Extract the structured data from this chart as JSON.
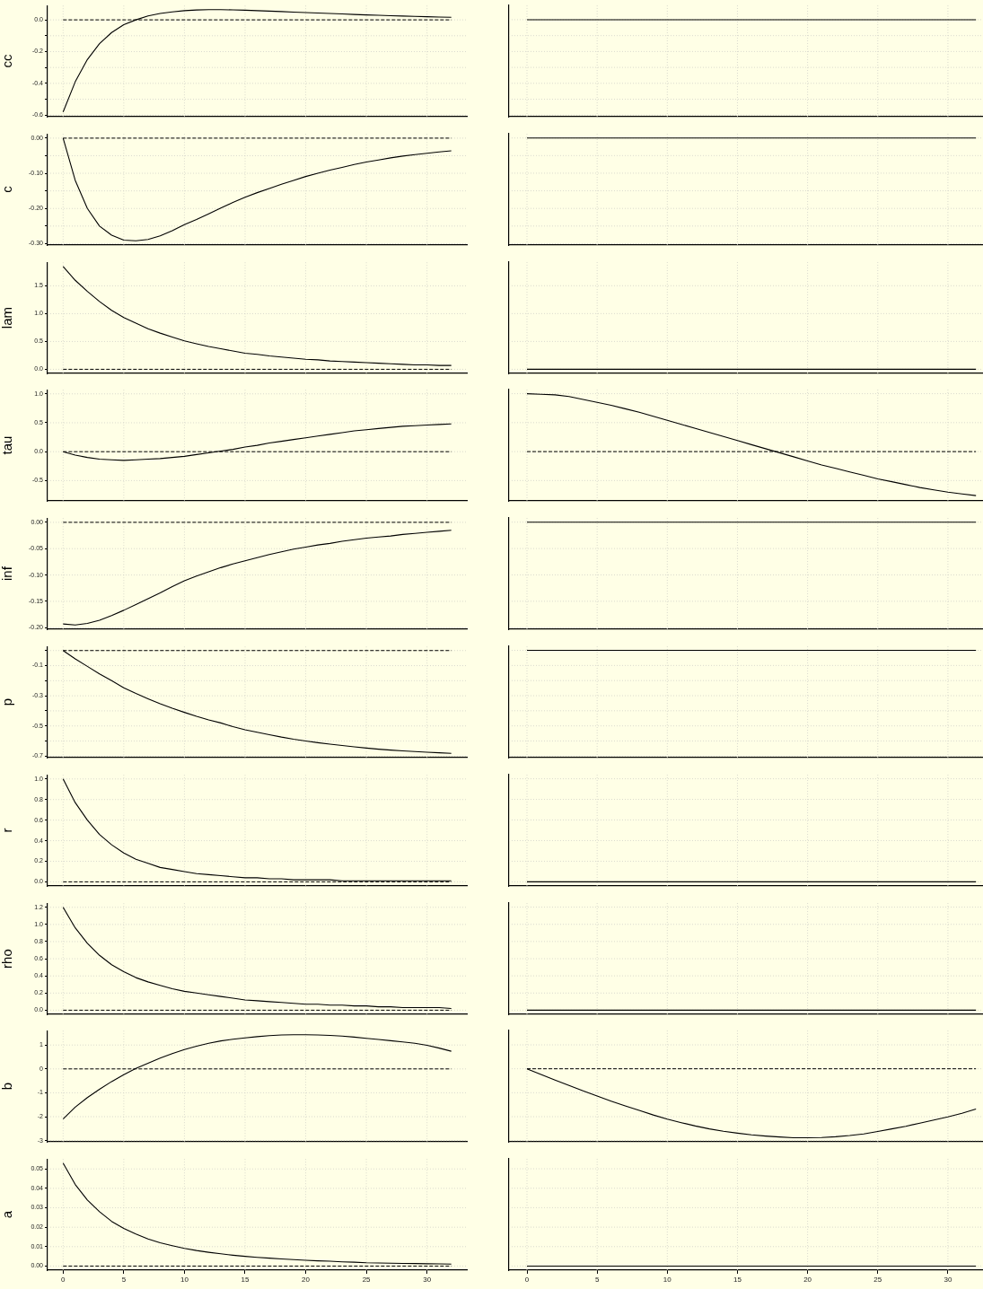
{
  "chart_data": [
    {
      "type": "line",
      "ylabel": "cc",
      "x": [
        0,
        1,
        2,
        3,
        4,
        5,
        6,
        7,
        8,
        9,
        10,
        11,
        12,
        13,
        14,
        15,
        16,
        17,
        18,
        19,
        20,
        21,
        22,
        23,
        24,
        25,
        26,
        27,
        28,
        29,
        30,
        31,
        32
      ],
      "series": [
        {
          "color": "#000000",
          "values": [
            -0.58,
            -0.39,
            -0.25,
            -0.15,
            -0.08,
            -0.03,
            0.0,
            0.025,
            0.04,
            0.05,
            0.058,
            0.062,
            0.064,
            0.064,
            0.063,
            0.061,
            0.058,
            0.055,
            0.052,
            0.049,
            0.046,
            0.043,
            0.04,
            0.037,
            0.034,
            0.031,
            0.029,
            0.026,
            0.024,
            0.022,
            0.02,
            0.018,
            0.016
          ]
        }
      ],
      "xlim": [
        -1.28,
        33.28
      ],
      "ylim": [
        -0.61,
        0.09
      ],
      "xticks": [
        0,
        5,
        10,
        15,
        20,
        25,
        30
      ],
      "yticks": [
        {
          "value": 0,
          "label": "0.0"
        },
        {
          "value": -0.1,
          "label": null
        },
        {
          "value": -0.2,
          "label": "-0.2"
        },
        {
          "value": -0.3,
          "label": null
        },
        {
          "value": -0.4,
          "label": "-0.4"
        },
        {
          "value": -0.5,
          "label": null
        },
        {
          "value": -0.6,
          "label": "-0.6"
        }
      ],
      "grid": true,
      "tick_labels": "y",
      "ref_lines": [
        {
          "axis": "y",
          "value": 0,
          "line_style": "dashed",
          "color": "#000000"
        }
      ]
    },
    {
      "type": "line",
      "x": [
        0,
        1,
        2,
        3,
        4,
        5,
        6,
        7,
        8,
        9,
        10,
        11,
        12,
        13,
        14,
        15,
        16,
        17,
        18,
        19,
        20,
        21,
        22,
        23,
        24,
        25,
        26,
        27,
        28,
        29,
        30,
        31,
        32
      ],
      "series": [
        {
          "color": "#000000",
          "values": [
            0,
            0,
            0,
            0,
            0,
            0,
            0,
            0,
            0,
            0,
            0,
            0,
            0,
            0,
            0,
            0,
            0,
            0,
            0,
            0,
            0,
            0,
            0,
            0,
            0,
            0,
            0,
            0,
            0,
            0,
            0,
            0,
            0
          ]
        }
      ],
      "xlim": [
        -1.28,
        32.5
      ],
      "ylim": [
        -0.61,
        0.09
      ],
      "xticks": [
        0,
        5,
        10,
        15,
        20,
        25,
        30
      ],
      "yticks": [
        0,
        -0.1,
        -0.2,
        -0.3,
        -0.4,
        -0.5,
        -0.6
      ],
      "grid": true,
      "tick_labels": false
    },
    {
      "type": "line",
      "ylabel": "c",
      "x": [
        0,
        1,
        2,
        3,
        4,
        5,
        6,
        7,
        8,
        9,
        10,
        11,
        12,
        13,
        14,
        15,
        16,
        17,
        18,
        19,
        20,
        21,
        22,
        23,
        24,
        25,
        26,
        27,
        28,
        29,
        30,
        31,
        32
      ],
      "series": [
        {
          "color": "#000000",
          "values": [
            0,
            -0.12,
            -0.2,
            -0.25,
            -0.276,
            -0.29,
            -0.292,
            -0.288,
            -0.278,
            -0.263,
            -0.246,
            -0.231,
            -0.215,
            -0.199,
            -0.183,
            -0.168,
            -0.155,
            -0.143,
            -0.131,
            -0.12,
            -0.109,
            -0.1,
            -0.091,
            -0.083,
            -0.075,
            -0.068,
            -0.062,
            -0.056,
            -0.051,
            -0.047,
            -0.043,
            -0.039,
            -0.036
          ]
        }
      ],
      "xlim": [
        -1.28,
        33.28
      ],
      "ylim": [
        -0.304,
        0.012
      ],
      "xticks": [
        0,
        5,
        10,
        15,
        20,
        25,
        30
      ],
      "yticks": [
        {
          "value": 0,
          "label": "0.00"
        },
        {
          "value": -0.05,
          "label": null
        },
        {
          "value": -0.1,
          "label": "-0.10"
        },
        {
          "value": -0.15,
          "label": null
        },
        {
          "value": -0.2,
          "label": "-0.20"
        },
        {
          "value": -0.25,
          "label": null
        },
        {
          "value": -0.3,
          "label": "-0.30"
        }
      ],
      "grid": true,
      "tick_labels": "y",
      "ref_lines": [
        {
          "axis": "y",
          "value": 0,
          "line_style": "dashed",
          "color": "#000000"
        }
      ]
    },
    {
      "type": "line",
      "x": [
        0,
        1,
        2,
        3,
        4,
        5,
        6,
        7,
        8,
        9,
        10,
        11,
        12,
        13,
        14,
        15,
        16,
        17,
        18,
        19,
        20,
        21,
        22,
        23,
        24,
        25,
        26,
        27,
        28,
        29,
        30,
        31,
        32
      ],
      "series": [
        {
          "color": "#000000",
          "values": [
            0,
            0,
            0,
            0,
            0,
            0,
            0,
            0,
            0,
            0,
            0,
            0,
            0,
            0,
            0,
            0,
            0,
            0,
            0,
            0,
            0,
            0,
            0,
            0,
            0,
            0,
            0,
            0,
            0,
            0,
            0,
            0,
            0
          ]
        }
      ],
      "xlim": [
        -1.28,
        32.5
      ],
      "ylim": [
        -0.304,
        0.012
      ],
      "xticks": [
        0,
        5,
        10,
        15,
        20,
        25,
        30
      ],
      "yticks": [
        0,
        -0.05,
        -0.1,
        -0.15,
        -0.2,
        -0.25,
        -0.3
      ],
      "grid": true,
      "tick_labels": false
    },
    {
      "type": "line",
      "ylabel": "lam",
      "x": [
        0,
        1,
        2,
        3,
        4,
        5,
        6,
        7,
        8,
        9,
        10,
        11,
        12,
        13,
        14,
        15,
        16,
        17,
        18,
        19,
        20,
        21,
        22,
        23,
        24,
        25,
        26,
        27,
        28,
        29,
        30,
        31,
        32
      ],
      "series": [
        {
          "color": "#000000",
          "values": [
            1.85,
            1.6,
            1.4,
            1.22,
            1.06,
            0.93,
            0.83,
            0.73,
            0.65,
            0.58,
            0.51,
            0.46,
            0.41,
            0.37,
            0.33,
            0.29,
            0.27,
            0.24,
            0.22,
            0.2,
            0.18,
            0.17,
            0.15,
            0.14,
            0.13,
            0.12,
            0.11,
            0.1,
            0.09,
            0.08,
            0.08,
            0.07,
            0.07
          ]
        }
      ],
      "xlim": [
        -1.28,
        33.28
      ],
      "ylim": [
        -0.074,
        1.924
      ],
      "xticks": [
        0,
        5,
        10,
        15,
        20,
        25,
        30
      ],
      "yticks": [
        {
          "value": 0,
          "label": "0.0"
        },
        {
          "value": 0.5,
          "label": "0.5"
        },
        {
          "value": 1,
          "label": "1.0"
        },
        {
          "value": 1.5,
          "label": "1.5"
        }
      ],
      "grid": true,
      "tick_labels": "y",
      "ref_lines": [
        {
          "axis": "y",
          "value": 0,
          "line_style": "dashed",
          "color": "#000000"
        }
      ]
    },
    {
      "type": "line",
      "x": [
        0,
        1,
        2,
        3,
        4,
        5,
        6,
        7,
        8,
        9,
        10,
        11,
        12,
        13,
        14,
        15,
        16,
        17,
        18,
        19,
        20,
        21,
        22,
        23,
        24,
        25,
        26,
        27,
        28,
        29,
        30,
        31,
        32
      ],
      "series": [
        {
          "color": "#000000",
          "values": [
            0,
            0,
            0,
            0,
            0,
            0,
            0,
            0,
            0,
            0,
            0,
            0,
            0,
            0,
            0,
            0,
            0,
            0,
            0,
            0,
            0,
            0,
            0,
            0,
            0,
            0,
            0,
            0,
            0,
            0,
            0,
            0,
            0
          ]
        }
      ],
      "xlim": [
        -1.28,
        32.5
      ],
      "ylim": [
        -0.074,
        1.924
      ],
      "xticks": [
        0,
        5,
        10,
        15,
        20,
        25,
        30
      ],
      "yticks": [
        0,
        0.5,
        1,
        1.5
      ],
      "grid": true,
      "tick_labels": false
    },
    {
      "type": "line",
      "ylabel": "tau",
      "x": [
        0,
        1,
        2,
        3,
        4,
        5,
        6,
        7,
        8,
        9,
        10,
        11,
        12,
        13,
        14,
        15,
        16,
        17,
        18,
        19,
        20,
        21,
        22,
        23,
        24,
        25,
        26,
        27,
        28,
        29,
        30,
        31,
        32
      ],
      "series": [
        {
          "color": "#000000",
          "values": [
            0,
            -0.06,
            -0.1,
            -0.13,
            -0.14,
            -0.15,
            -0.14,
            -0.13,
            -0.12,
            -0.1,
            -0.08,
            -0.05,
            -0.02,
            0.01,
            0.04,
            0.08,
            0.11,
            0.15,
            0.18,
            0.21,
            0.24,
            0.27,
            0.3,
            0.33,
            0.36,
            0.38,
            0.4,
            0.42,
            0.44,
            0.45,
            0.46,
            0.47,
            0.48
          ]
        }
      ],
      "xlim": [
        -1.28,
        33.28
      ],
      "ylim": [
        -0.851,
        1.071
      ],
      "xticks": [
        0,
        5,
        10,
        15,
        20,
        25,
        30
      ],
      "yticks": [
        {
          "value": -0.5,
          "label": "-0.5"
        },
        {
          "value": 0,
          "label": "0.0"
        },
        {
          "value": 0.5,
          "label": "0.5"
        },
        {
          "value": 1,
          "label": "1.0"
        }
      ],
      "grid": true,
      "tick_labels": "y",
      "ref_lines": [
        {
          "axis": "y",
          "value": 0,
          "line_style": "dashed",
          "color": "#000000"
        }
      ]
    },
    {
      "type": "line",
      "x": [
        0,
        1,
        2,
        3,
        4,
        5,
        6,
        7,
        8,
        9,
        10,
        11,
        12,
        13,
        14,
        15,
        16,
        17,
        18,
        19,
        20,
        21,
        22,
        23,
        24,
        25,
        26,
        27,
        28,
        29,
        30,
        31,
        32
      ],
      "series": [
        {
          "color": "#000000",
          "values": [
            1.0,
            0.99,
            0.98,
            0.95,
            0.9,
            0.85,
            0.8,
            0.74,
            0.68,
            0.61,
            0.54,
            0.47,
            0.4,
            0.33,
            0.26,
            0.19,
            0.12,
            0.05,
            -0.02,
            -0.09,
            -0.16,
            -0.23,
            -0.29,
            -0.35,
            -0.41,
            -0.47,
            -0.52,
            -0.57,
            -0.62,
            -0.66,
            -0.7,
            -0.73,
            -0.76
          ]
        }
      ],
      "xlim": [
        -1.28,
        32.5
      ],
      "ylim": [
        -0.851,
        1.071
      ],
      "xticks": [
        0,
        5,
        10,
        15,
        20,
        25,
        30
      ],
      "yticks": [
        -0.5,
        0,
        0.5,
        1
      ],
      "grid": true,
      "tick_labels": false,
      "ref_lines": [
        {
          "axis": "y",
          "value": 0,
          "line_style": "dashed",
          "color": "#000000"
        }
      ]
    },
    {
      "type": "line",
      "ylabel": "inf",
      "x": [
        0,
        1,
        2,
        3,
        4,
        5,
        6,
        7,
        8,
        9,
        10,
        11,
        12,
        13,
        14,
        15,
        16,
        17,
        18,
        19,
        20,
        21,
        22,
        23,
        24,
        25,
        26,
        27,
        28,
        29,
        30,
        31,
        32
      ],
      "series": [
        {
          "color": "#000000",
          "values": [
            -0.193,
            -0.195,
            -0.192,
            -0.186,
            -0.177,
            -0.167,
            -0.156,
            -0.145,
            -0.134,
            -0.122,
            -0.111,
            -0.102,
            -0.094,
            -0.086,
            -0.079,
            -0.073,
            -0.067,
            -0.061,
            -0.056,
            -0.051,
            -0.047,
            -0.043,
            -0.04,
            -0.036,
            -0.033,
            -0.03,
            -0.028,
            -0.026,
            -0.023,
            -0.021,
            -0.019,
            -0.017,
            -0.015
          ]
        }
      ],
      "xlim": [
        -1.28,
        33.28
      ],
      "ylim": [
        -0.203,
        0.008
      ],
      "xticks": [
        0,
        5,
        10,
        15,
        20,
        25,
        30
      ],
      "yticks": [
        {
          "value": 0,
          "label": "0.00"
        },
        {
          "value": -0.05,
          "label": "-0.05"
        },
        {
          "value": -0.1,
          "label": "-0.10"
        },
        {
          "value": -0.15,
          "label": "-0.15"
        },
        {
          "value": -0.2,
          "label": "-0.20"
        }
      ],
      "grid": true,
      "tick_labels": "y",
      "ref_lines": [
        {
          "axis": "y",
          "value": 0,
          "line_style": "dashed",
          "color": "#000000"
        }
      ]
    },
    {
      "type": "line",
      "x": [
        0,
        1,
        2,
        3,
        4,
        5,
        6,
        7,
        8,
        9,
        10,
        11,
        12,
        13,
        14,
        15,
        16,
        17,
        18,
        19,
        20,
        21,
        22,
        23,
        24,
        25,
        26,
        27,
        28,
        29,
        30,
        31,
        32
      ],
      "series": [
        {
          "color": "#000000",
          "values": [
            0,
            0,
            0,
            0,
            0,
            0,
            0,
            0,
            0,
            0,
            0,
            0,
            0,
            0,
            0,
            0,
            0,
            0,
            0,
            0,
            0,
            0,
            0,
            0,
            0,
            0,
            0,
            0,
            0,
            0,
            0,
            0,
            0
          ]
        }
      ],
      "xlim": [
        -1.28,
        32.5
      ],
      "ylim": [
        -0.203,
        0.008
      ],
      "xticks": [
        0,
        5,
        10,
        15,
        20,
        25,
        30
      ],
      "yticks": [
        0,
        -0.05,
        -0.1,
        -0.15,
        -0.2
      ],
      "grid": true,
      "tick_labels": false
    },
    {
      "type": "line",
      "ylabel": "p",
      "x": [
        0,
        1,
        2,
        3,
        4,
        5,
        6,
        7,
        8,
        9,
        10,
        11,
        12,
        13,
        14,
        15,
        16,
        17,
        18,
        19,
        20,
        21,
        22,
        23,
        24,
        25,
        26,
        27,
        28,
        29,
        30,
        31,
        32
      ],
      "series": [
        {
          "color": "#000000",
          "values": [
            0,
            -0.055,
            -0.105,
            -0.155,
            -0.2,
            -0.247,
            -0.285,
            -0.32,
            -0.353,
            -0.383,
            -0.41,
            -0.436,
            -0.46,
            -0.48,
            -0.505,
            -0.525,
            -0.542,
            -0.558,
            -0.574,
            -0.588,
            -0.6,
            -0.611,
            -0.621,
            -0.63,
            -0.639,
            -0.647,
            -0.654,
            -0.66,
            -0.665,
            -0.67,
            -0.674,
            -0.678,
            -0.682
          ]
        }
      ],
      "xlim": [
        -1.28,
        33.28
      ],
      "ylim": [
        -0.71,
        0.027
      ],
      "xticks": [
        0,
        5,
        10,
        15,
        20,
        25,
        30
      ],
      "yticks": [
        {
          "value": 0,
          "label": null
        },
        {
          "value": -0.1,
          "label": "-0.1"
        },
        {
          "value": -0.2,
          "label": null
        },
        {
          "value": -0.3,
          "label": "-0.3"
        },
        {
          "value": -0.4,
          "label": null
        },
        {
          "value": -0.5,
          "label": "-0.5"
        },
        {
          "value": -0.6,
          "label": null
        },
        {
          "value": -0.7,
          "label": "-0.7"
        }
      ],
      "grid": true,
      "tick_labels": "y",
      "ref_lines": [
        {
          "axis": "y",
          "value": 0,
          "line_style": "dashed",
          "color": "#000000"
        }
      ]
    },
    {
      "type": "line",
      "x": [
        0,
        1,
        2,
        3,
        4,
        5,
        6,
        7,
        8,
        9,
        10,
        11,
        12,
        13,
        14,
        15,
        16,
        17,
        18,
        19,
        20,
        21,
        22,
        23,
        24,
        25,
        26,
        27,
        28,
        29,
        30,
        31,
        32
      ],
      "series": [
        {
          "color": "#000000",
          "values": [
            0,
            0,
            0,
            0,
            0,
            0,
            0,
            0,
            0,
            0,
            0,
            0,
            0,
            0,
            0,
            0,
            0,
            0,
            0,
            0,
            0,
            0,
            0,
            0,
            0,
            0,
            0,
            0,
            0,
            0,
            0,
            0,
            0
          ]
        }
      ],
      "xlim": [
        -1.28,
        32.5
      ],
      "ylim": [
        -0.71,
        0.027
      ],
      "xticks": [
        0,
        5,
        10,
        15,
        20,
        25,
        30
      ],
      "yticks": [
        0,
        -0.1,
        -0.2,
        -0.3,
        -0.4,
        -0.5,
        -0.6,
        -0.7
      ],
      "grid": true,
      "tick_labels": false
    },
    {
      "type": "line",
      "ylabel": "r",
      "x": [
        0,
        1,
        2,
        3,
        4,
        5,
        6,
        7,
        8,
        9,
        10,
        11,
        12,
        13,
        14,
        15,
        16,
        17,
        18,
        19,
        20,
        21,
        22,
        23,
        24,
        25,
        26,
        27,
        28,
        29,
        30,
        31,
        32
      ],
      "series": [
        {
          "color": "#000000",
          "values": [
            1,
            0.77,
            0.6,
            0.46,
            0.36,
            0.28,
            0.22,
            0.18,
            0.14,
            0.12,
            0.1,
            0.08,
            0.07,
            0.06,
            0.05,
            0.04,
            0.04,
            0.03,
            0.03,
            0.02,
            0.02,
            0.02,
            0.02,
            0.01,
            0.01,
            0.01,
            0.01,
            0.01,
            0.01,
            0.01,
            0.01,
            0.01,
            0.01
          ]
        }
      ],
      "xlim": [
        -1.28,
        33.28
      ],
      "ylim": [
        -0.04,
        1.04
      ],
      "xticks": [
        0,
        5,
        10,
        15,
        20,
        25,
        30
      ],
      "yticks": [
        {
          "value": 0,
          "label": "0.0"
        },
        {
          "value": 0.2,
          "label": "0.2"
        },
        {
          "value": 0.4,
          "label": "0.4"
        },
        {
          "value": 0.6,
          "label": "0.6"
        },
        {
          "value": 0.8,
          "label": "0.8"
        },
        {
          "value": 1,
          "label": "1.0"
        }
      ],
      "grid": true,
      "tick_labels": "y",
      "ref_lines": [
        {
          "axis": "y",
          "value": 0,
          "line_style": "dashed",
          "color": "#000000"
        }
      ]
    },
    {
      "type": "line",
      "x": [
        0,
        1,
        2,
        3,
        4,
        5,
        6,
        7,
        8,
        9,
        10,
        11,
        12,
        13,
        14,
        15,
        16,
        17,
        18,
        19,
        20,
        21,
        22,
        23,
        24,
        25,
        26,
        27,
        28,
        29,
        30,
        31,
        32
      ],
      "series": [
        {
          "color": "#000000",
          "values": [
            0,
            0,
            0,
            0,
            0,
            0,
            0,
            0,
            0,
            0,
            0,
            0,
            0,
            0,
            0,
            0,
            0,
            0,
            0,
            0,
            0,
            0,
            0,
            0,
            0,
            0,
            0,
            0,
            0,
            0,
            0,
            0,
            0
          ]
        }
      ],
      "xlim": [
        -1.28,
        32.5
      ],
      "ylim": [
        -0.04,
        1.04
      ],
      "xticks": [
        0,
        5,
        10,
        15,
        20,
        25,
        30
      ],
      "yticks": [
        0,
        0.2,
        0.4,
        0.6,
        0.8,
        1
      ],
      "grid": true,
      "tick_labels": false
    },
    {
      "type": "line",
      "ylabel": "rho",
      "x": [
        0,
        1,
        2,
        3,
        4,
        5,
        6,
        7,
        8,
        9,
        10,
        11,
        12,
        13,
        14,
        15,
        16,
        17,
        18,
        19,
        20,
        21,
        22,
        23,
        24,
        25,
        26,
        27,
        28,
        29,
        30,
        31,
        32
      ],
      "series": [
        {
          "color": "#000000",
          "values": [
            1.2,
            0.96,
            0.78,
            0.64,
            0.53,
            0.45,
            0.38,
            0.33,
            0.29,
            0.25,
            0.22,
            0.2,
            0.18,
            0.16,
            0.14,
            0.12,
            0.11,
            0.1,
            0.09,
            0.08,
            0.07,
            0.07,
            0.06,
            0.06,
            0.05,
            0.05,
            0.04,
            0.04,
            0.03,
            0.03,
            0.03,
            0.03,
            0.02
          ]
        }
      ],
      "xlim": [
        -1.28,
        33.28
      ],
      "ylim": [
        -0.048,
        1.248
      ],
      "xticks": [
        0,
        5,
        10,
        15,
        20,
        25,
        30
      ],
      "yticks": [
        {
          "value": 0,
          "label": "0.0"
        },
        {
          "value": 0.2,
          "label": "0.2"
        },
        {
          "value": 0.4,
          "label": "0.4"
        },
        {
          "value": 0.6,
          "label": "0.6"
        },
        {
          "value": 0.8,
          "label": "0.8"
        },
        {
          "value": 1,
          "label": "1.0"
        },
        {
          "value": 1.2,
          "label": "1.2"
        }
      ],
      "grid": true,
      "tick_labels": "y",
      "ref_lines": [
        {
          "axis": "y",
          "value": 0,
          "line_style": "dashed",
          "color": "#000000"
        }
      ]
    },
    {
      "type": "line",
      "x": [
        0,
        1,
        2,
        3,
        4,
        5,
        6,
        7,
        8,
        9,
        10,
        11,
        12,
        13,
        14,
        15,
        16,
        17,
        18,
        19,
        20,
        21,
        22,
        23,
        24,
        25,
        26,
        27,
        28,
        29,
        30,
        31,
        32
      ],
      "series": [
        {
          "color": "#000000",
          "values": [
            0,
            0,
            0,
            0,
            0,
            0,
            0,
            0,
            0,
            0,
            0,
            0,
            0,
            0,
            0,
            0,
            0,
            0,
            0,
            0,
            0,
            0,
            0,
            0,
            0,
            0,
            0,
            0,
            0,
            0,
            0,
            0,
            0
          ]
        }
      ],
      "xlim": [
        -1.28,
        32.5
      ],
      "ylim": [
        -0.048,
        1.248
      ],
      "xticks": [
        0,
        5,
        10,
        15,
        20,
        25,
        30
      ],
      "yticks": [
        0,
        0.2,
        0.4,
        0.6,
        0.8,
        1,
        1.2
      ],
      "grid": true,
      "tick_labels": false
    },
    {
      "type": "line",
      "ylabel": "b",
      "x": [
        0,
        1,
        2,
        3,
        4,
        5,
        6,
        7,
        8,
        9,
        10,
        11,
        12,
        13,
        14,
        15,
        16,
        17,
        18,
        19,
        20,
        21,
        22,
        23,
        24,
        25,
        26,
        27,
        28,
        29,
        30,
        31,
        32
      ],
      "series": [
        {
          "color": "#000000",
          "values": [
            -2.1,
            -1.6,
            -1.2,
            -0.85,
            -0.53,
            -0.24,
            0.02,
            0.24,
            0.45,
            0.64,
            0.81,
            0.95,
            1.07,
            1.17,
            1.24,
            1.3,
            1.35,
            1.39,
            1.42,
            1.43,
            1.43,
            1.42,
            1.4,
            1.37,
            1.33,
            1.28,
            1.23,
            1.18,
            1.13,
            1.07,
            0.99,
            0.87,
            0.74
          ]
        }
      ],
      "xlim": [
        -1.28,
        33.28
      ],
      "ylim": [
        -3.05,
        1.6
      ],
      "xticks": [
        0,
        5,
        10,
        15,
        20,
        25,
        30
      ],
      "yticks": [
        -3,
        -2,
        -1,
        0,
        1
      ],
      "grid": true,
      "tick_labels": "y",
      "ref_lines": [
        {
          "axis": "y",
          "value": 0,
          "line_style": "dashed",
          "color": "#000000"
        }
      ]
    },
    {
      "type": "line",
      "x": [
        0,
        1,
        2,
        3,
        4,
        5,
        6,
        7,
        8,
        9,
        10,
        11,
        12,
        13,
        14,
        15,
        16,
        17,
        18,
        19,
        20,
        21,
        22,
        23,
        24,
        25,
        26,
        27,
        28,
        29,
        30,
        31,
        32
      ],
      "series": [
        {
          "color": "#000000",
          "values": [
            0,
            -0.24,
            -0.47,
            -0.7,
            -0.92,
            -1.14,
            -1.35,
            -1.55,
            -1.74,
            -1.93,
            -2.1,
            -2.25,
            -2.39,
            -2.51,
            -2.61,
            -2.69,
            -2.76,
            -2.81,
            -2.85,
            -2.88,
            -2.88,
            -2.87,
            -2.84,
            -2.79,
            -2.72,
            -2.62,
            -2.51,
            -2.4,
            -2.27,
            -2.14,
            -2.01,
            -1.86,
            -1.68
          ]
        }
      ],
      "xlim": [
        -1.28,
        32.5
      ],
      "ylim": [
        -3.05,
        1.6
      ],
      "xticks": [
        0,
        5,
        10,
        15,
        20,
        25,
        30
      ],
      "yticks": [
        -3,
        -2,
        -1,
        0,
        1
      ],
      "grid": true,
      "tick_labels": false,
      "ref_lines": [
        {
          "axis": "y",
          "value": 0,
          "line_style": "dashed",
          "color": "#000000"
        }
      ]
    },
    {
      "type": "line",
      "ylabel": "a",
      "x": [
        0,
        1,
        2,
        3,
        4,
        5,
        6,
        7,
        8,
        9,
        10,
        11,
        12,
        13,
        14,
        15,
        16,
        17,
        18,
        19,
        20,
        21,
        22,
        23,
        24,
        25,
        26,
        27,
        28,
        29,
        30,
        31,
        32
      ],
      "series": [
        {
          "color": "#000000",
          "values": [
            0.053,
            0.042,
            0.034,
            0.028,
            0.023,
            0.0194,
            0.0165,
            0.014,
            0.012,
            0.0105,
            0.0091,
            0.008,
            0.0071,
            0.0063,
            0.0056,
            0.005,
            0.0045,
            0.0041,
            0.0037,
            0.0033,
            0.003,
            0.0027,
            0.0025,
            0.0022,
            0.002,
            0.0017,
            0.0016,
            0.0015,
            0.0014,
            0.0013,
            0.0012,
            0.0011,
            0.001
          ]
        }
      ],
      "xlim": [
        -1.28,
        33.28
      ],
      "ylim": [
        -0.0021,
        0.0551
      ],
      "xticks": [
        0,
        5,
        10,
        15,
        20,
        25,
        30
      ],
      "yticks": [
        {
          "value": 0,
          "label": "0.00"
        },
        {
          "value": 0.01,
          "label": "0.01"
        },
        {
          "value": 0.02,
          "label": "0.02"
        },
        {
          "value": 0.03,
          "label": "0.03"
        },
        {
          "value": 0.04,
          "label": "0.04"
        },
        {
          "value": 0.05,
          "label": "0.05"
        }
      ],
      "grid": true,
      "ref_lines": [
        {
          "axis": "y",
          "value": 0,
          "line_style": "dashed",
          "color": "#000000"
        }
      ]
    },
    {
      "type": "line",
      "x": [
        0,
        1,
        2,
        3,
        4,
        5,
        6,
        7,
        8,
        9,
        10,
        11,
        12,
        13,
        14,
        15,
        16,
        17,
        18,
        19,
        20,
        21,
        22,
        23,
        24,
        25,
        26,
        27,
        28,
        29,
        30,
        31,
        32
      ],
      "series": [
        {
          "color": "#000000",
          "values": [
            0,
            0,
            0,
            0,
            0,
            0,
            0,
            0,
            0,
            0,
            0,
            0,
            0,
            0,
            0,
            0,
            0,
            0,
            0,
            0,
            0,
            0,
            0,
            0,
            0,
            0,
            0,
            0,
            0,
            0,
            0,
            0,
            0
          ]
        }
      ],
      "xlim": [
        -1.28,
        32.5
      ],
      "ylim": [
        -0.0021,
        0.0551
      ],
      "xticks": [
        0,
        5,
        10,
        15,
        20,
        25,
        30
      ],
      "yticks": [
        0,
        0.01,
        0.02,
        0.03,
        0.04,
        0.05
      ],
      "grid": true,
      "tick_labels": "x"
    }
  ]
}
